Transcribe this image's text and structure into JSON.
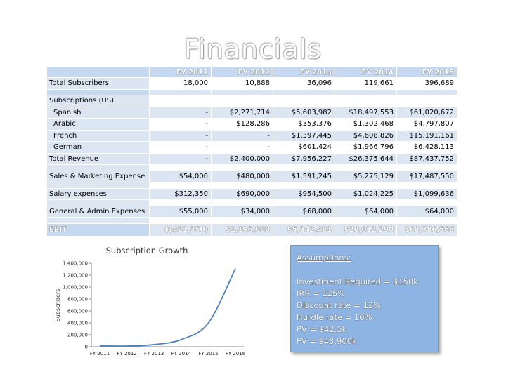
{
  "slide": {
    "title": "Financials"
  },
  "table": {
    "columns": [
      "FY 2011",
      "FY 2012",
      "FY 2013",
      "FY 2014",
      "FY 2015"
    ],
    "rows": [
      {
        "label": "Total Subscribers",
        "values": [
          "18,000",
          "10,888",
          "36,096",
          "119,661",
          "396,689"
        ]
      },
      {
        "label": "Subscriptions (US)",
        "values": [
          "",
          "",
          "",
          "",
          ""
        ]
      },
      {
        "label": "Spanish",
        "values": [
          "-",
          "$2,271,714",
          "$5,603,982",
          "$18,497,553",
          "$61,020,672"
        ]
      },
      {
        "label": "Arabic",
        "values": [
          "-",
          "$128,286",
          "$353,376",
          "$1,302,468",
          "$4,797,807"
        ]
      },
      {
        "label": "French",
        "values": [
          "-",
          "-",
          "$1,397,445",
          "$4,608,826",
          "$15,191,161"
        ]
      },
      {
        "label": "German",
        "values": [
          "-",
          "-",
          "$601,424",
          "$1,966,796",
          "$6,428,113"
        ]
      },
      {
        "label": "Total Revenue",
        "values": [
          "-",
          "$2,400,000",
          "$7,956,227",
          "$26,375,644",
          "$87,437,752"
        ]
      },
      {
        "label": "Sales & Marketing Expense",
        "values": [
          "$54,000",
          "$480,000",
          "$1,591,245",
          "$5,275,129",
          "$17,487,550"
        ]
      },
      {
        "label": "Salary expenses",
        "values": [
          "$312,350",
          "$690,000",
          "$954,500",
          "$1,024,225",
          "$1,099,636"
        ]
      },
      {
        "label": "General & Admin Expenses",
        "values": [
          "$55,000",
          "$34,000",
          "$68,000",
          "$64,000",
          "$64,000"
        ]
      },
      {
        "label": "EBIT",
        "values": [
          "($421,350)",
          "$1,196,000",
          "$5,342,481",
          "$20,012,290",
          "$68,786,566"
        ]
      }
    ]
  },
  "chart_data": {
    "type": "line",
    "title": "Subscription Growth",
    "ylabel": "Subscribers",
    "xlabel": "",
    "categories": [
      "FY 2011",
      "FY 2012",
      "FY 2013",
      "FY 2014",
      "FY 2015",
      "FY 2016"
    ],
    "series": [
      {
        "values": [
          18000,
          10888,
          36096,
          119661,
          396689,
          1310000
        ]
      }
    ],
    "ylim": [
      0,
      1400000
    ],
    "yticks": [
      0,
      200000,
      400000,
      600000,
      800000,
      1000000,
      1200000,
      1400000
    ],
    "ytick_labels": [
      "0",
      "200,000",
      "400,000",
      "600,000",
      "800,000",
      "1,000,000",
      "1,200,000",
      "1,400,000"
    ],
    "line_color": "#4f81bd",
    "grid": false,
    "legend": "none"
  },
  "assumptions": {
    "heading": "Assumptions:",
    "lines": [
      "Investment Required = $150k",
      "IRR = 125%",
      "Discount rate = 12%",
      "Hurdle rate = 10%",
      "PV = $42.5k",
      "FV = $43,900k"
    ]
  }
}
